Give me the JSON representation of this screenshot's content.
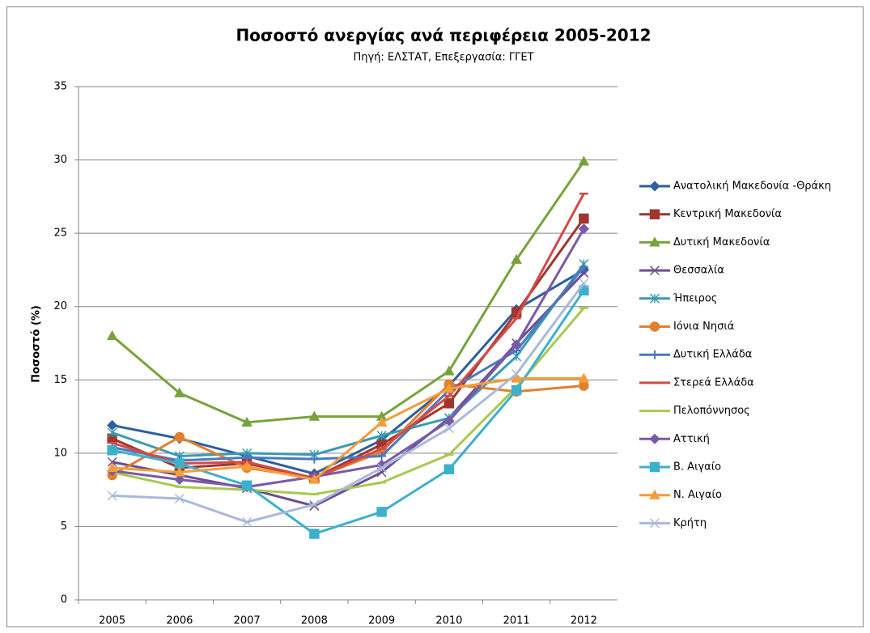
{
  "chart_data": {
    "type": "line",
    "title": "Ποσοστό ανεργίας ανά περιφέρεια 2005-2012",
    "subtitle": "Πηγή: ΕΛΣΤΑΤ, Επεξεργασία: ΓΓΕΤ",
    "y_label": "Ποσοστό (%)",
    "categories": [
      "2005",
      "2006",
      "2007",
      "2008",
      "2009",
      "2010",
      "2011",
      "2012"
    ],
    "ylim": [
      0,
      35
    ],
    "yticks": [
      0,
      5,
      10,
      15,
      20,
      25,
      30,
      35
    ],
    "grid": true,
    "legend": "right",
    "series": [
      {
        "name": "Ανατολική Μακεδονία -Θράκη",
        "color": "#2e5f9e",
        "marker": "diamond",
        "values": [
          11.9,
          11.0,
          9.8,
          8.6,
          10.9,
          14.6,
          19.8,
          22.5
        ]
      },
      {
        "name": "Κεντρική Μακεδονία",
        "color": "#a0362f",
        "marker": "square",
        "values": [
          11.0,
          9.0,
          9.3,
          8.3,
          10.6,
          13.4,
          19.6,
          26.0
        ]
      },
      {
        "name": "Δυτική Μακεδονία",
        "color": "#77a33b",
        "marker": "triangle",
        "values": [
          18.0,
          14.1,
          12.1,
          12.5,
          12.5,
          15.6,
          23.2,
          29.9
        ]
      },
      {
        "name": "Θεσσαλία",
        "color": "#6b4e8f",
        "marker": "x",
        "values": [
          9.4,
          8.5,
          7.6,
          6.4,
          8.7,
          12.4,
          17.5,
          22.3
        ]
      },
      {
        "name": "Ήπειρος",
        "color": "#3a9bb3",
        "marker": "asterisk",
        "values": [
          11.4,
          9.8,
          10.0,
          9.9,
          11.2,
          12.4,
          16.6,
          22.9
        ]
      },
      {
        "name": "Ιόνια Νησιά",
        "color": "#e0802f",
        "marker": "circle",
        "values": [
          8.5,
          11.1,
          9.0,
          8.3,
          10.1,
          14.7,
          14.2,
          14.6
        ]
      },
      {
        "name": "Δυτική Ελλάδα",
        "color": "#4a79c0",
        "marker": "plus",
        "values": [
          10.4,
          9.5,
          9.7,
          9.6,
          9.8,
          14.3,
          17.0,
          22.7
        ]
      },
      {
        "name": "Στερεά Ελλάδα",
        "color": "#d24b48",
        "marker": "dash",
        "values": [
          10.7,
          9.3,
          9.4,
          8.3,
          10.3,
          13.9,
          19.2,
          27.7
        ]
      },
      {
        "name": "Πελοπόννησος",
        "color": "#a8c951",
        "marker": "dash",
        "values": [
          8.7,
          7.7,
          7.5,
          7.2,
          8.0,
          9.9,
          14.5,
          19.9
        ]
      },
      {
        "name": "Αττική",
        "color": "#7a5aa8",
        "marker": "diamond",
        "values": [
          8.8,
          8.2,
          7.7,
          8.4,
          9.2,
          12.2,
          17.4,
          25.3
        ]
      },
      {
        "name": "Β. Αιγαίο",
        "color": "#3db0cc",
        "marker": "square",
        "values": [
          10.2,
          9.3,
          7.8,
          4.5,
          6.0,
          8.9,
          14.3,
          21.1
        ]
      },
      {
        "name": "Ν. Αιγαίο",
        "color": "#f59c3b",
        "marker": "triangle",
        "values": [
          9.0,
          8.7,
          9.1,
          8.2,
          12.1,
          14.4,
          15.1,
          15.1
        ]
      },
      {
        "name": "Κρήτη",
        "color": "#a9b9d9",
        "marker": "x",
        "values": [
          7.1,
          6.9,
          5.3,
          6.5,
          9.0,
          11.7,
          15.4,
          21.6
        ]
      }
    ]
  }
}
